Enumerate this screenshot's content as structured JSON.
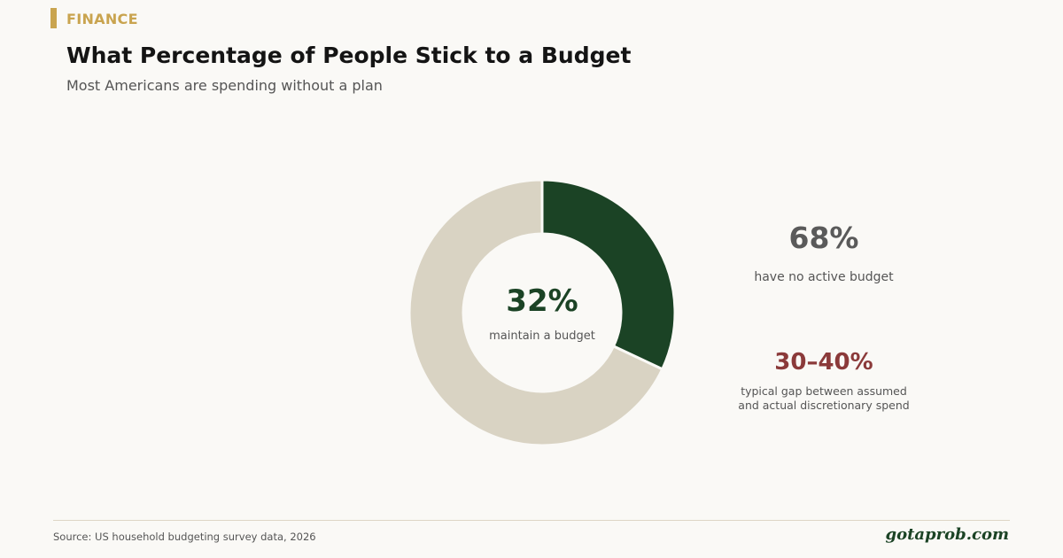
{
  "category": "FINANCE",
  "title": "What Percentage of People Stick to a Budget",
  "subtitle": "Most Americans are spending without a plan",
  "chart_data": {
    "type": "pie",
    "style": "donut",
    "categories": [
      "maintain a budget",
      "have no active budget"
    ],
    "values": [
      32,
      68
    ],
    "colors": [
      "#1B4325",
      "#D9D3C3"
    ],
    "center_value": "32%",
    "center_label": "maintain a budget"
  },
  "stats": [
    {
      "value": "68%",
      "label": [
        "have no active budget"
      ],
      "color": "#5A5A5A"
    },
    {
      "value": "30–40%",
      "label": [
        "typical gap between assumed",
        "and actual discretionary spend"
      ],
      "color": "#8B3A3A"
    }
  ],
  "footer": {
    "source": "Source: US household budgeting survey data, 2026",
    "brand": "gotaprob.com"
  },
  "colors": {
    "accent": "#C9A44F",
    "brand": "#1B4325",
    "background": "#FAF9F6"
  }
}
